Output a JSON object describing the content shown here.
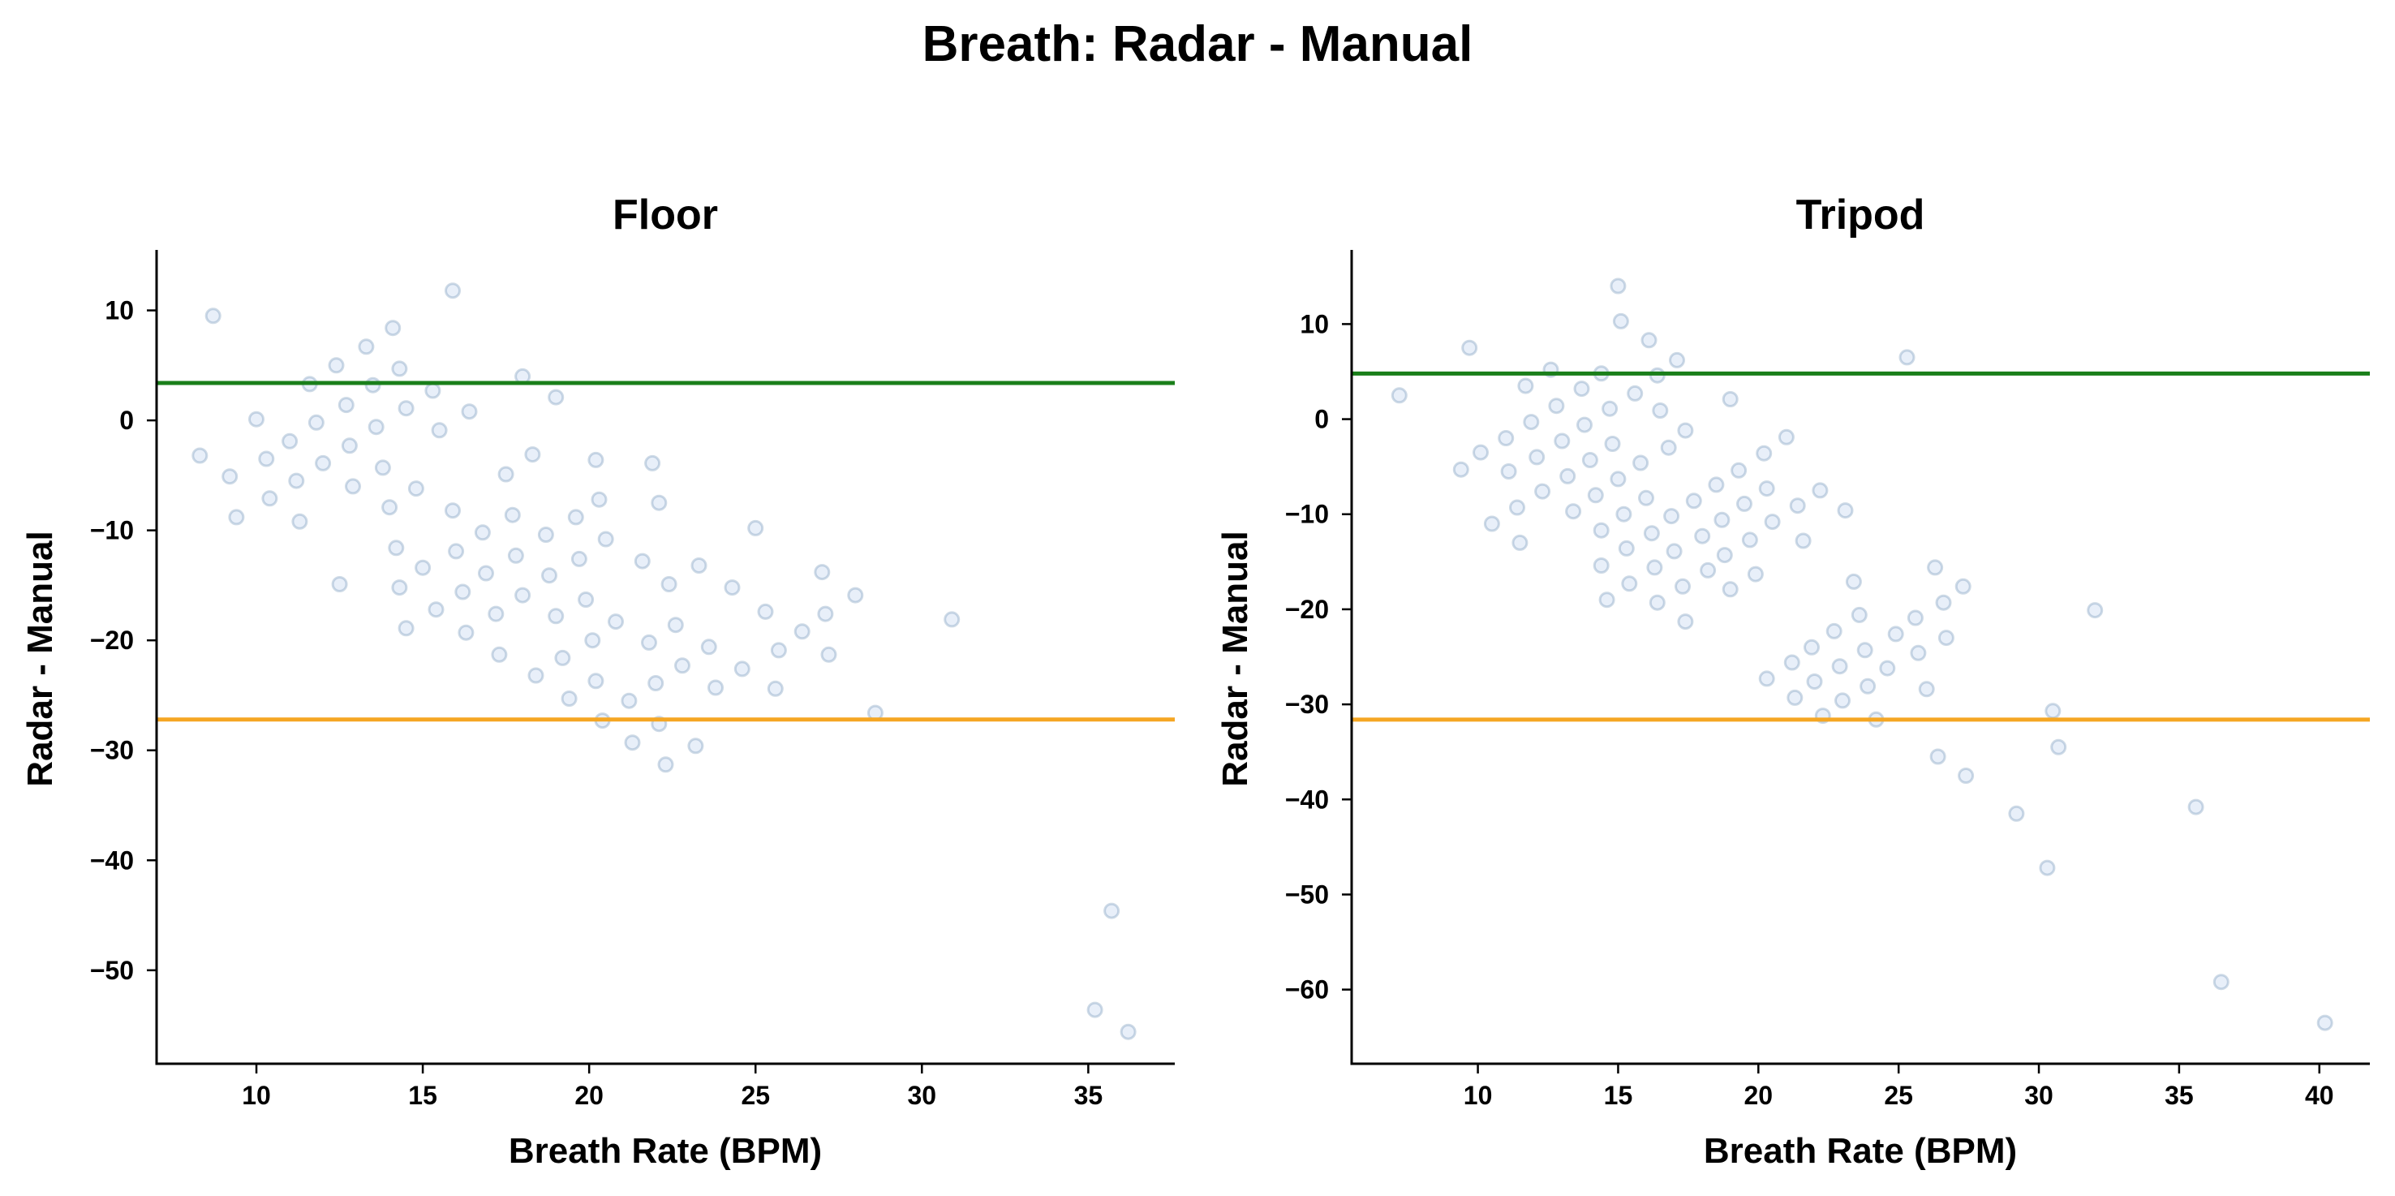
{
  "figure": {
    "title": "Breath: Radar - Manual"
  },
  "chart_data": [
    {
      "type": "scatter",
      "title": "Floor",
      "xlabel": "Breath Rate (BPM)",
      "ylabel": "Radar - Manual",
      "xlim": [
        7,
        37.6
      ],
      "ylim": [
        -58.5,
        15.5
      ],
      "xticks": [
        10,
        15,
        20,
        25,
        30,
        35
      ],
      "yticks": [
        10,
        0,
        -10,
        -20,
        -30,
        -40,
        -50
      ],
      "grid": false,
      "hlines": [
        {
          "y": 3.4,
          "color": "#1a7f1a"
        },
        {
          "y": -27.2,
          "color": "#f5a623"
        }
      ],
      "point_color": "#aec7e8",
      "points": [
        [
          8.7,
          9.5
        ],
        [
          8.3,
          -3.2
        ],
        [
          9.2,
          -5.1
        ],
        [
          9.4,
          -8.8
        ],
        [
          10.0,
          0.1
        ],
        [
          10.3,
          -3.5
        ],
        [
          10.4,
          -7.1
        ],
        [
          11.0,
          -1.9
        ],
        [
          11.2,
          -5.5
        ],
        [
          11.3,
          -9.2
        ],
        [
          11.6,
          3.3
        ],
        [
          11.8,
          -0.2
        ],
        [
          12.0,
          -3.9
        ],
        [
          12.4,
          5.0
        ],
        [
          12.5,
          -14.9
        ],
        [
          12.7,
          1.4
        ],
        [
          12.8,
          -2.3
        ],
        [
          12.9,
          -6.0
        ],
        [
          13.3,
          6.7
        ],
        [
          13.5,
          3.2
        ],
        [
          13.6,
          -0.6
        ],
        [
          13.8,
          -4.3
        ],
        [
          14.0,
          -7.9
        ],
        [
          14.1,
          8.4
        ],
        [
          14.2,
          -11.6
        ],
        [
          14.3,
          4.7
        ],
        [
          14.3,
          -15.2
        ],
        [
          14.5,
          1.1
        ],
        [
          14.5,
          -18.9
        ],
        [
          14.8,
          -6.2
        ],
        [
          15.0,
          -13.4
        ],
        [
          15.3,
          2.7
        ],
        [
          15.4,
          -17.2
        ],
        [
          15.5,
          -0.9
        ],
        [
          15.9,
          11.8
        ],
        [
          15.9,
          -8.2
        ],
        [
          16.0,
          -11.9
        ],
        [
          16.2,
          -15.6
        ],
        [
          16.3,
          -19.3
        ],
        [
          16.4,
          0.8
        ],
        [
          16.8,
          -10.2
        ],
        [
          16.9,
          -13.9
        ],
        [
          17.2,
          -17.6
        ],
        [
          17.3,
          -21.3
        ],
        [
          17.5,
          -4.9
        ],
        [
          17.7,
          -8.6
        ],
        [
          17.8,
          -12.3
        ],
        [
          18.0,
          4.0
        ],
        [
          18.0,
          -15.9
        ],
        [
          18.3,
          -3.1
        ],
        [
          18.4,
          -23.2
        ],
        [
          18.7,
          -10.4
        ],
        [
          18.8,
          -14.1
        ],
        [
          19.0,
          2.1
        ],
        [
          19.0,
          -17.8
        ],
        [
          19.2,
          -21.6
        ],
        [
          19.4,
          -25.3
        ],
        [
          19.6,
          -8.8
        ],
        [
          19.7,
          -12.6
        ],
        [
          19.9,
          -16.3
        ],
        [
          20.1,
          -20.0
        ],
        [
          20.2,
          -3.6
        ],
        [
          20.2,
          -23.7
        ],
        [
          20.3,
          -7.2
        ],
        [
          20.4,
          -27.3
        ],
        [
          20.5,
          -10.8
        ],
        [
          20.8,
          -18.3
        ],
        [
          21.2,
          -25.5
        ],
        [
          21.3,
          -29.3
        ],
        [
          21.6,
          -12.8
        ],
        [
          21.8,
          -20.2
        ],
        [
          21.9,
          -3.9
        ],
        [
          22.0,
          -23.9
        ],
        [
          22.1,
          -27.6
        ],
        [
          22.1,
          -7.5
        ],
        [
          22.3,
          -31.3
        ],
        [
          22.4,
          -14.9
        ],
        [
          22.6,
          -18.6
        ],
        [
          22.8,
          -22.3
        ],
        [
          23.2,
          -29.6
        ],
        [
          23.3,
          -13.2
        ],
        [
          23.6,
          -20.6
        ],
        [
          23.8,
          -24.3
        ],
        [
          24.3,
          -15.2
        ],
        [
          24.6,
          -22.6
        ],
        [
          25.0,
          -9.8
        ],
        [
          25.3,
          -17.4
        ],
        [
          25.6,
          -24.4
        ],
        [
          25.7,
          -20.9
        ],
        [
          26.4,
          -19.2
        ],
        [
          27.0,
          -13.8
        ],
        [
          27.1,
          -17.6
        ],
        [
          27.2,
          -21.3
        ],
        [
          28.0,
          -15.9
        ],
        [
          28.6,
          -26.6
        ],
        [
          30.9,
          -18.1
        ],
        [
          35.2,
          -53.6
        ],
        [
          35.7,
          -44.6
        ],
        [
          36.2,
          -55.6
        ]
      ]
    },
    {
      "type": "scatter",
      "title": "Tripod",
      "xlabel": "Breath Rate (BPM)",
      "ylabel": "Radar - Manual",
      "xlim": [
        5.5,
        41.8
      ],
      "ylim": [
        -67.8,
        17.8
      ],
      "xticks": [
        10,
        15,
        20,
        25,
        30,
        35,
        40
      ],
      "yticks": [
        10,
        0,
        -10,
        -20,
        -30,
        -40,
        -50,
        -60
      ],
      "grid": false,
      "hlines": [
        {
          "y": 4.8,
          "color": "#1a7f1a"
        },
        {
          "y": -31.6,
          "color": "#f5a623"
        }
      ],
      "point_color": "#aec7e8",
      "points": [
        [
          7.2,
          2.5
        ],
        [
          9.4,
          -5.3
        ],
        [
          9.7,
          7.5
        ],
        [
          10.1,
          -3.5
        ],
        [
          10.5,
          -11.0
        ],
        [
          11.0,
          -2.0
        ],
        [
          11.1,
          -5.5
        ],
        [
          11.4,
          -9.3
        ],
        [
          11.5,
          -13.0
        ],
        [
          11.7,
          3.5
        ],
        [
          11.9,
          -0.3
        ],
        [
          12.1,
          -4.0
        ],
        [
          12.3,
          -7.6
        ],
        [
          12.6,
          5.2
        ],
        [
          12.8,
          1.4
        ],
        [
          13.0,
          -2.3
        ],
        [
          13.2,
          -6.0
        ],
        [
          13.4,
          -9.7
        ],
        [
          13.7,
          3.2
        ],
        [
          13.8,
          -0.6
        ],
        [
          14.0,
          -4.3
        ],
        [
          14.2,
          -8.0
        ],
        [
          14.4,
          4.8
        ],
        [
          14.4,
          -11.7
        ],
        [
          14.4,
          -15.4
        ],
        [
          14.6,
          -19.0
        ],
        [
          14.7,
          1.1
        ],
        [
          14.8,
          -2.6
        ],
        [
          15.0,
          14.0
        ],
        [
          15.0,
          -6.3
        ],
        [
          15.1,
          10.3
        ],
        [
          15.2,
          -10.0
        ],
        [
          15.3,
          -13.6
        ],
        [
          15.4,
          -17.3
        ],
        [
          15.6,
          2.7
        ],
        [
          15.8,
          -4.6
        ],
        [
          16.0,
          -8.3
        ],
        [
          16.1,
          8.3
        ],
        [
          16.2,
          -12.0
        ],
        [
          16.3,
          -15.6
        ],
        [
          16.4,
          -19.3
        ],
        [
          16.4,
          4.6
        ],
        [
          16.5,
          0.9
        ],
        [
          16.8,
          -3.0
        ],
        [
          16.9,
          -10.2
        ],
        [
          17.0,
          -13.9
        ],
        [
          17.1,
          6.2
        ],
        [
          17.3,
          -17.6
        ],
        [
          17.4,
          -21.3
        ],
        [
          17.4,
          -1.2
        ],
        [
          17.7,
          -8.6
        ],
        [
          18.0,
          -12.3
        ],
        [
          18.2,
          -15.9
        ],
        [
          18.5,
          -6.9
        ],
        [
          18.7,
          -10.6
        ],
        [
          18.8,
          -14.3
        ],
        [
          19.0,
          2.1
        ],
        [
          19.0,
          -17.9
        ],
        [
          19.3,
          -5.4
        ],
        [
          19.5,
          -8.9
        ],
        [
          19.7,
          -12.7
        ],
        [
          19.9,
          -16.3
        ],
        [
          20.2,
          -3.6
        ],
        [
          20.3,
          -7.3
        ],
        [
          20.3,
          -27.3
        ],
        [
          20.5,
          -10.8
        ],
        [
          21.0,
          -1.9
        ],
        [
          21.2,
          -25.6
        ],
        [
          21.3,
          -29.3
        ],
        [
          21.4,
          -9.1
        ],
        [
          21.6,
          -12.8
        ],
        [
          21.9,
          -24.0
        ],
        [
          22.0,
          -27.6
        ],
        [
          22.2,
          -7.5
        ],
        [
          22.3,
          -31.2
        ],
        [
          22.7,
          -22.3
        ],
        [
          22.9,
          -26.0
        ],
        [
          23.0,
          -29.6
        ],
        [
          23.1,
          -9.6
        ],
        [
          23.4,
          -17.1
        ],
        [
          23.6,
          -20.6
        ],
        [
          23.8,
          -24.3
        ],
        [
          23.9,
          -28.1
        ],
        [
          24.2,
          -31.6
        ],
        [
          24.6,
          -26.2
        ],
        [
          24.9,
          -22.6
        ],
        [
          25.3,
          6.5
        ],
        [
          25.6,
          -20.9
        ],
        [
          25.7,
          -24.6
        ],
        [
          26.0,
          -28.4
        ],
        [
          26.3,
          -15.6
        ],
        [
          26.4,
          -35.5
        ],
        [
          26.6,
          -19.3
        ],
        [
          26.7,
          -23.0
        ],
        [
          27.3,
          -17.6
        ],
        [
          27.4,
          -37.5
        ],
        [
          29.2,
          -41.5
        ],
        [
          30.3,
          -47.2
        ],
        [
          30.5,
          -30.7
        ],
        [
          30.7,
          -34.5
        ],
        [
          32.0,
          -20.1
        ],
        [
          35.6,
          -40.8
        ],
        [
          36.5,
          -59.2
        ],
        [
          40.2,
          -63.5
        ]
      ]
    }
  ]
}
